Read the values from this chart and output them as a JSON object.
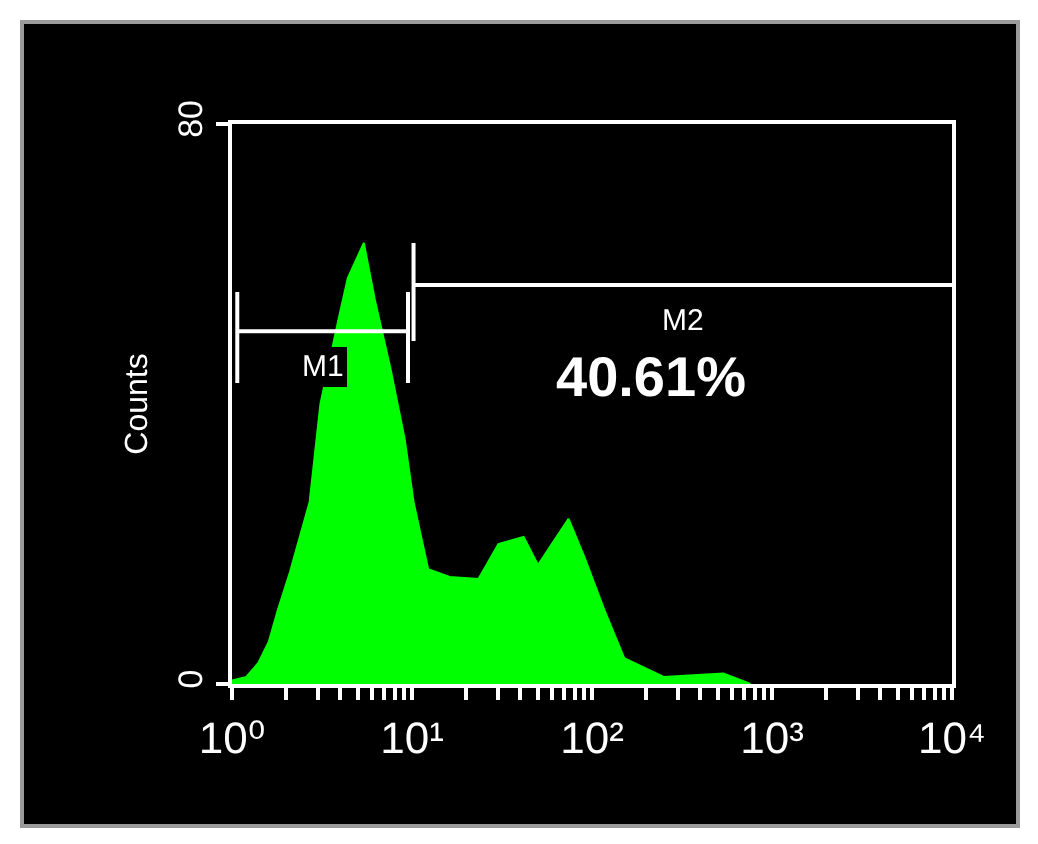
{
  "chart_data": {
    "type": "area",
    "ylabel": "Counts",
    "log": "x",
    "x": [
      1,
      1.2,
      1.4,
      1.6,
      1.8,
      2.1,
      2.7,
      3.1,
      3.9,
      4.4,
      5.4,
      6.2,
      7.6,
      9.1,
      10.2,
      12.3,
      16.2,
      23.4,
      30.2,
      41.7,
      50.1,
      74.1,
      91.2,
      117,
      151,
      250,
      537,
      760
    ],
    "xlim": [
      1,
      10000
    ],
    "xticks": [
      {
        "value": 1,
        "label": "10⁰"
      },
      {
        "value": 2,
        "label": null
      },
      {
        "value": 3,
        "label": null
      },
      {
        "value": 4,
        "label": null
      },
      {
        "value": 5,
        "label": null
      },
      {
        "value": 6,
        "label": null
      },
      {
        "value": 7,
        "label": null
      },
      {
        "value": 8,
        "label": null
      },
      {
        "value": 9,
        "label": null
      },
      {
        "value": 10,
        "label": "10¹"
      },
      {
        "value": 20,
        "label": null
      },
      {
        "value": 30,
        "label": null
      },
      {
        "value": 40,
        "label": null
      },
      {
        "value": 50,
        "label": null
      },
      {
        "value": 60,
        "label": null
      },
      {
        "value": 70,
        "label": null
      },
      {
        "value": 80,
        "label": null
      },
      {
        "value": 90,
        "label": null
      },
      {
        "value": 100,
        "label": "10²"
      },
      {
        "value": 200,
        "label": null
      },
      {
        "value": 300,
        "label": null
      },
      {
        "value": 400,
        "label": null
      },
      {
        "value": 500,
        "label": null
      },
      {
        "value": 600,
        "label": null
      },
      {
        "value": 700,
        "label": null
      },
      {
        "value": 800,
        "label": null
      },
      {
        "value": 900,
        "label": null
      },
      {
        "value": 1000,
        "label": "10³"
      },
      {
        "value": 2000,
        "label": null
      },
      {
        "value": 3000,
        "label": null
      },
      {
        "value": 4000,
        "label": null
      },
      {
        "value": 5000,
        "label": null
      },
      {
        "value": 6000,
        "label": null
      },
      {
        "value": 7000,
        "label": null
      },
      {
        "value": 8000,
        "label": null
      },
      {
        "value": 9000,
        "label": null
      },
      {
        "value": 10000,
        "label": "10⁴"
      }
    ],
    "ylim": [
      0,
      80
    ],
    "yticks": [
      0,
      80
    ],
    "series": [
      {
        "color": "#00ff00",
        "values": [
          0.5,
          1,
          3,
          6,
          10.6,
          16,
          26,
          40,
          52,
          58,
          63,
          55,
          45,
          35,
          26,
          16.4,
          15.3,
          15,
          20,
          21,
          17,
          23.6,
          18,
          10.6,
          3.7,
          1,
          1.5,
          0
        ]
      },
      {
        "type": "line",
        "name": "M1",
        "color": "#ffffff",
        "x": [
          1.07,
          1.07,
          1.07,
          9.5,
          9.5,
          9.5
        ],
        "values": [
          56,
          43,
          50.4,
          50.4,
          56,
          43
        ]
      },
      {
        "type": "line",
        "name": "M2",
        "color": "#ffffff",
        "x": [
          10.2,
          10.2,
          10.2,
          10000
        ],
        "values": [
          63,
          49,
          57,
          57
        ]
      }
    ],
    "annotations": [
      "40.61%"
    ]
  }
}
